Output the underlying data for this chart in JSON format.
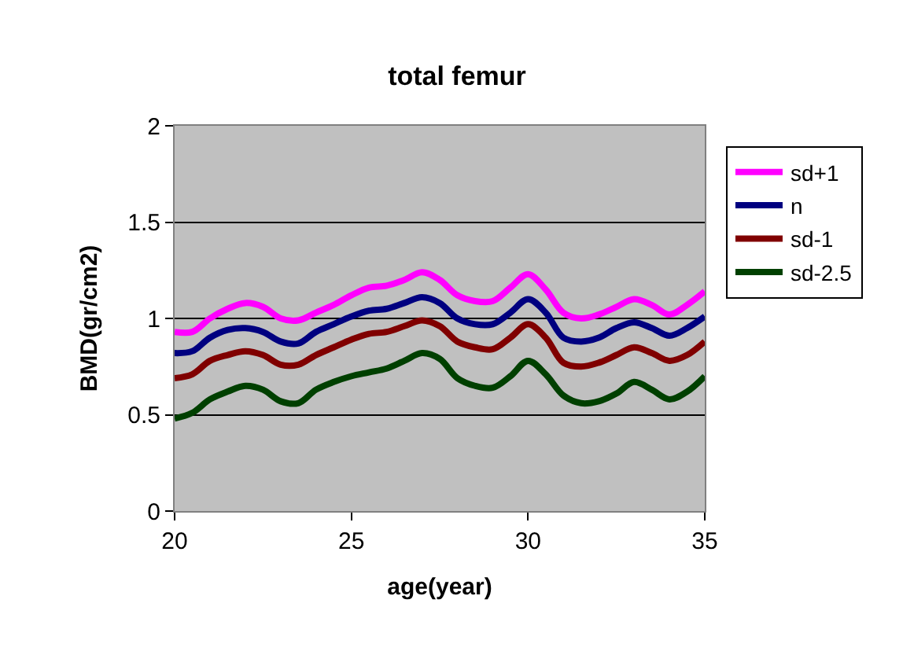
{
  "chart_data": {
    "type": "line",
    "title": "total femur",
    "xlabel": "age(year)",
    "ylabel": "BMD(gr/cm2)",
    "x": [
      20,
      20.5,
      21,
      21.5,
      22,
      22.5,
      23,
      23.5,
      24,
      24.5,
      25,
      25.5,
      26,
      26.5,
      27,
      27.5,
      28,
      28.5,
      29,
      29.5,
      30,
      30.5,
      31,
      31.5,
      32,
      32.5,
      33,
      33.5,
      34,
      34.5,
      35
    ],
    "series": [
      {
        "name": "sd+1",
        "color": "#ff00ff",
        "values": [
          0.93,
          0.93,
          1.0,
          1.05,
          1.08,
          1.06,
          1.0,
          0.99,
          1.03,
          1.07,
          1.12,
          1.16,
          1.17,
          1.2,
          1.24,
          1.2,
          1.12,
          1.09,
          1.09,
          1.16,
          1.23,
          1.15,
          1.03,
          1.0,
          1.02,
          1.06,
          1.1,
          1.07,
          1.02,
          1.07,
          1.14
        ]
      },
      {
        "name": "n",
        "color": "#000080",
        "values": [
          0.82,
          0.83,
          0.9,
          0.94,
          0.95,
          0.93,
          0.88,
          0.87,
          0.93,
          0.97,
          1.01,
          1.04,
          1.05,
          1.08,
          1.11,
          1.08,
          1.0,
          0.97,
          0.97,
          1.03,
          1.1,
          1.03,
          0.9,
          0.88,
          0.9,
          0.95,
          0.98,
          0.95,
          0.91,
          0.95,
          1.01
        ]
      },
      {
        "name": "sd-1",
        "color": "#800000",
        "values": [
          0.69,
          0.71,
          0.78,
          0.81,
          0.83,
          0.81,
          0.76,
          0.76,
          0.81,
          0.85,
          0.89,
          0.92,
          0.93,
          0.96,
          0.99,
          0.96,
          0.88,
          0.85,
          0.84,
          0.9,
          0.97,
          0.9,
          0.77,
          0.75,
          0.77,
          0.81,
          0.85,
          0.82,
          0.78,
          0.81,
          0.88
        ]
      },
      {
        "name": "sd-2.5",
        "color": "#004000",
        "values": [
          0.48,
          0.51,
          0.58,
          0.62,
          0.65,
          0.63,
          0.57,
          0.56,
          0.63,
          0.67,
          0.7,
          0.72,
          0.74,
          0.78,
          0.82,
          0.79,
          0.69,
          0.65,
          0.64,
          0.7,
          0.78,
          0.71,
          0.6,
          0.56,
          0.57,
          0.61,
          0.67,
          0.63,
          0.58,
          0.62,
          0.7
        ]
      }
    ],
    "xlim": [
      20,
      35
    ],
    "xticks": [
      20,
      25,
      30,
      35
    ],
    "ylim": [
      0,
      2
    ],
    "yticks": [
      0,
      0.5,
      1,
      1.5,
      2
    ],
    "grid": "y",
    "legend": "right",
    "marker": "none",
    "line_style": "solid"
  }
}
